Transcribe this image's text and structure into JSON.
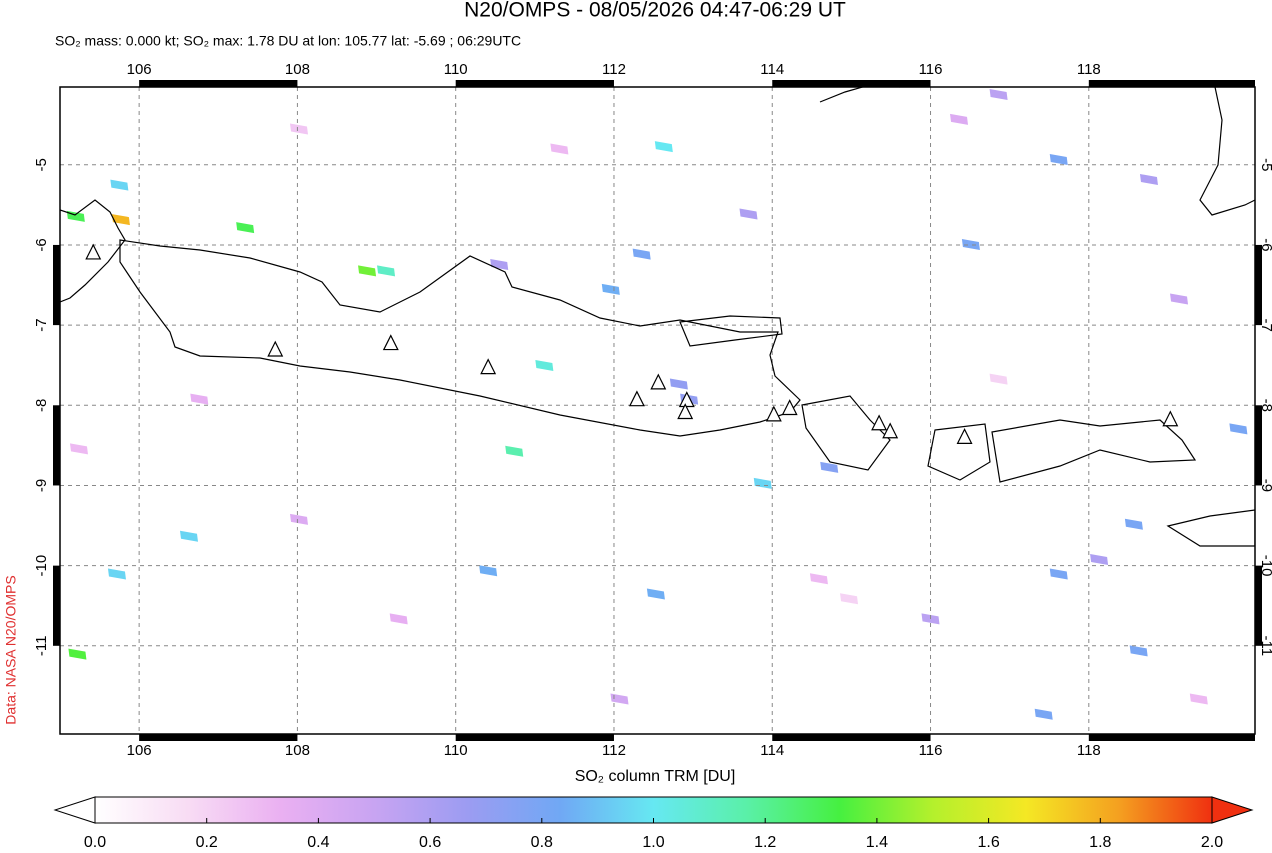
{
  "chart_data": {
    "type": "pixel-map",
    "title": "N20/OMPS - 08/05/2026 04:47-06:29 UT",
    "subtitle": "SO₂ mass: 0.000 kt; SO₂ max: 1.78 DU at lon: 105.77 lat: -5.69 ; 06:29UTC",
    "credit": "Data: NASA N20/OMPS",
    "colorbar_label": "SO₂ column TRM [DU]",
    "xlim": [
      105,
      120.1
    ],
    "ylim": [
      -12.1,
      -4.03
    ],
    "xticks": [
      106,
      108,
      110,
      112,
      114,
      116,
      118
    ],
    "yticks": [
      -5,
      -6,
      -7,
      -8,
      -9,
      -10,
      -11
    ],
    "grid": true,
    "colorbar_lim": [
      0,
      2
    ],
    "colorbar_ticks": [
      {
        "value": 0,
        "label": "0.0"
      },
      {
        "value": 0.2,
        "label": "0.2"
      },
      {
        "value": 0.4,
        "label": "0.4"
      },
      {
        "value": 0.6,
        "label": "0.6"
      },
      {
        "value": 0.8,
        "label": "0.8"
      },
      {
        "value": 1,
        "label": "1.0"
      },
      {
        "value": 1.2,
        "label": "1.2"
      },
      {
        "value": 1.4,
        "label": "1.4"
      },
      {
        "value": 1.6,
        "label": "1.6"
      },
      {
        "value": 1.8,
        "label": "1.8"
      },
      {
        "value": 2,
        "label": "2.0"
      }
    ],
    "colorscale": [
      "#ffffff",
      "#f8dcf4",
      "#eab0f2",
      "#c8a4f2",
      "#9c9cf2",
      "#70a8f4",
      "#66e8f2",
      "#5af0a8",
      "#46f040",
      "#b4f02c",
      "#f4e824",
      "#f4a020",
      "#f03010"
    ],
    "pixels_lon": [
      105.77,
      105.22,
      108.88,
      109.12,
      107.34,
      111.12,
      110.74,
      112.63,
      113.88,
      105.2,
      105.75,
      106.63,
      105.72,
      110.41,
      112.53,
      117.62,
      116.51,
      118.57,
      118.63,
      117.43,
      117.62,
      111.96,
      112.35,
      112.95,
      112.82,
      114.72,
      119.89,
      110.55,
      113.7,
      118.76,
      118.13,
      116.0,
      112.07,
      108.02,
      106.76,
      116.36,
      116.86,
      119.14,
      109.28,
      114.59,
      111.31,
      108.02,
      119.39,
      105.24,
      116.86,
      114.97
    ],
    "pixels_lat": [
      -5.69,
      -11.11,
      -6.33,
      -6.33,
      -5.79,
      -7.51,
      -8.58,
      -4.78,
      -8.98,
      -5.65,
      -5.26,
      -9.64,
      -10.11,
      -10.07,
      -10.36,
      -4.94,
      -6.0,
      -9.49,
      -11.07,
      -11.86,
      -10.11,
      -6.56,
      -6.12,
      -7.93,
      -7.74,
      -8.78,
      -8.3,
      -6.25,
      -5.62,
      -5.19,
      -9.93,
      -10.67,
      -11.67,
      -9.43,
      -7.93,
      -4.44,
      -4.13,
      -6.68,
      -10.67,
      -10.17,
      -4.81,
      -4.56,
      -11.67,
      -8.55,
      -7.68,
      -10.42
    ],
    "pixels_values": [
      1.78,
      1.35,
      1.4,
      1.1,
      1.3,
      1.05,
      1.15,
      1.0,
      0.95,
      1.3,
      0.95,
      0.95,
      0.95,
      0.85,
      0.85,
      0.8,
      0.8,
      0.8,
      0.8,
      0.8,
      0.8,
      0.85,
      0.8,
      0.7,
      0.7,
      0.75,
      0.8,
      0.6,
      0.6,
      0.6,
      0.6,
      0.55,
      0.45,
      0.4,
      0.35,
      0.4,
      0.55,
      0.5,
      0.35,
      0.3,
      0.3,
      0.25,
      0.3,
      0.3,
      0.2,
      0.2
    ],
    "volcanoes_lon": [
      105.42,
      107.72,
      109.18,
      110.41,
      112.29,
      112.56,
      112.92,
      112.9,
      114.02,
      114.22,
      115.35,
      115.49,
      116.43,
      119.03
    ],
    "volcanoes_lat": [
      -6.1,
      -7.31,
      -7.23,
      -7.53,
      -7.93,
      -7.72,
      -7.94,
      -8.09,
      -8.12,
      -8.04,
      -8.23,
      -8.33,
      -8.4,
      -8.18
    ]
  }
}
